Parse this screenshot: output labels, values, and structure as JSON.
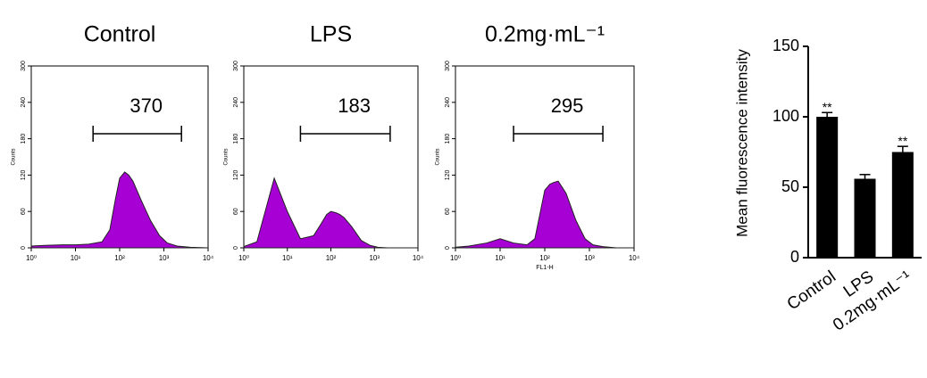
{
  "chart_data": [
    {
      "type": "area",
      "title": "Control",
      "ylabel": "Counts",
      "log_x": true,
      "color": "#a600d4",
      "x": [
        1,
        2,
        5,
        10,
        20,
        40,
        60,
        80,
        100,
        130,
        160,
        200,
        300,
        500,
        800,
        1200,
        2000,
        4000,
        10000
      ],
      "values": [
        3,
        4,
        5,
        5,
        6,
        10,
        30,
        80,
        115,
        125,
        120,
        110,
        80,
        45,
        20,
        8,
        3,
        1,
        0
      ],
      "xlim": [
        1,
        10000
      ],
      "xticks": [
        {
          "value": 1,
          "label": "10⁰"
        },
        {
          "value": 10,
          "label": "10¹"
        },
        {
          "value": 100,
          "label": "10²"
        },
        {
          "value": 1000,
          "label": "10³"
        },
        {
          "value": 10000,
          "label": "10⁴"
        }
      ],
      "ylim": [
        0,
        300
      ],
      "yticks": [
        0,
        60,
        120,
        180,
        240,
        300
      ],
      "gate": {
        "label": "370",
        "range": [
          25,
          2500
        ]
      }
    },
    {
      "type": "area",
      "title": "LPS",
      "ylabel": "Counts",
      "log_x": true,
      "color": "#a600d4",
      "x": [
        1,
        2,
        5,
        10,
        20,
        40,
        60,
        80,
        100,
        130,
        160,
        200,
        300,
        500,
        800,
        1200,
        2000,
        4000,
        10000
      ],
      "values": [
        2,
        10,
        115,
        60,
        15,
        20,
        40,
        55,
        60,
        58,
        55,
        50,
        35,
        12,
        4,
        1,
        0,
        0,
        0
      ],
      "xlim": [
        1,
        10000
      ],
      "xticks": [
        {
          "value": 1,
          "label": "10⁰"
        },
        {
          "value": 10,
          "label": "10¹"
        },
        {
          "value": 100,
          "label": "10²"
        },
        {
          "value": 1000,
          "label": "10³"
        },
        {
          "value": 10000,
          "label": "10⁴"
        }
      ],
      "ylim": [
        0,
        300
      ],
      "yticks": [
        0,
        60,
        120,
        180,
        240,
        300
      ],
      "gate": {
        "label": "183",
        "range": [
          20,
          2300
        ]
      }
    },
    {
      "type": "area",
      "title": "0.2mg·mL⁻¹",
      "ylabel": "Counts",
      "xlabel": "FL1-H",
      "log_x": true,
      "color": "#a600d4",
      "x": [
        1,
        2,
        5,
        10,
        20,
        40,
        60,
        80,
        100,
        130,
        160,
        200,
        300,
        500,
        800,
        1200,
        2000,
        4000,
        10000
      ],
      "values": [
        1,
        3,
        8,
        15,
        8,
        5,
        15,
        60,
        95,
        105,
        108,
        110,
        90,
        45,
        15,
        5,
        2,
        0,
        0
      ],
      "xlim": [
        1,
        10000
      ],
      "xticks": [
        {
          "value": 1,
          "label": "10⁰"
        },
        {
          "value": 10,
          "label": "10¹"
        },
        {
          "value": 100,
          "label": "10²"
        },
        {
          "value": 1000,
          "label": "10³"
        },
        {
          "value": 10000,
          "label": "10⁴"
        }
      ],
      "ylim": [
        0,
        300
      ],
      "yticks": [
        0,
        60,
        120,
        180,
        240,
        300
      ],
      "gate": {
        "label": "295",
        "range": [
          20,
          2000
        ]
      }
    },
    {
      "type": "bar",
      "ylabel": "Mean fluorescence intensity",
      "color": "#000000",
      "categories": [
        "Control",
        "LPS",
        "0.2mg·mL⁻¹"
      ],
      "values": [
        100,
        56,
        75
      ],
      "errors": [
        3,
        3,
        4
      ],
      "significance": [
        "**",
        null,
        "**"
      ],
      "ylim": [
        0,
        150
      ],
      "yticks": [
        0,
        50,
        100,
        150
      ]
    }
  ]
}
